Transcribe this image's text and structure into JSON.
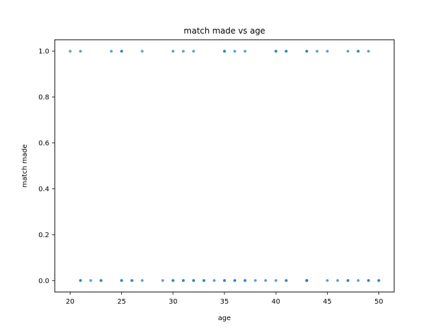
{
  "chart_data": {
    "type": "scatter",
    "title": "match made vs age",
    "xlabel": "age",
    "ylabel": "match made",
    "xlim": [
      18.5,
      51.5
    ],
    "ylim": [
      -0.05,
      1.05
    ],
    "xticks": [
      20,
      25,
      30,
      35,
      40,
      45,
      50
    ],
    "yticks": [
      0.0,
      0.2,
      0.4,
      0.6,
      0.8,
      1.0
    ],
    "xtick_labels": [
      "20",
      "25",
      "30",
      "35",
      "40",
      "45",
      "50"
    ],
    "ytick_labels": [
      "0.0",
      "0.2",
      "0.4",
      "0.6",
      "0.8",
      "1.0"
    ],
    "grid": false,
    "marker_color": "#1f77b4",
    "series": [
      {
        "points": [
          {
            "x": 20,
            "y": 1
          },
          {
            "x": 21,
            "y": 1
          },
          {
            "x": 24,
            "y": 1
          },
          {
            "x": 25,
            "y": 1
          },
          {
            "x": 25,
            "y": 1
          },
          {
            "x": 27,
            "y": 1
          },
          {
            "x": 30,
            "y": 1
          },
          {
            "x": 31,
            "y": 1
          },
          {
            "x": 32,
            "y": 1
          },
          {
            "x": 35,
            "y": 1
          },
          {
            "x": 35,
            "y": 1
          },
          {
            "x": 36,
            "y": 1
          },
          {
            "x": 37,
            "y": 1
          },
          {
            "x": 40,
            "y": 1
          },
          {
            "x": 40,
            "y": 1
          },
          {
            "x": 41,
            "y": 1
          },
          {
            "x": 41,
            "y": 1
          },
          {
            "x": 43,
            "y": 1
          },
          {
            "x": 43,
            "y": 1
          },
          {
            "x": 44,
            "y": 1
          },
          {
            "x": 45,
            "y": 1
          },
          {
            "x": 47,
            "y": 1
          },
          {
            "x": 48,
            "y": 1
          },
          {
            "x": 48,
            "y": 1
          },
          {
            "x": 49,
            "y": 1
          },
          {
            "x": 21,
            "y": 0
          },
          {
            "x": 21,
            "y": 0
          },
          {
            "x": 22,
            "y": 0
          },
          {
            "x": 23,
            "y": 0
          },
          {
            "x": 23,
            "y": 0
          },
          {
            "x": 25,
            "y": 0
          },
          {
            "x": 25,
            "y": 0
          },
          {
            "x": 26,
            "y": 0
          },
          {
            "x": 26,
            "y": 0
          },
          {
            "x": 27,
            "y": 0
          },
          {
            "x": 29,
            "y": 0
          },
          {
            "x": 30,
            "y": 0
          },
          {
            "x": 30,
            "y": 0
          },
          {
            "x": 31,
            "y": 0
          },
          {
            "x": 31,
            "y": 0
          },
          {
            "x": 32,
            "y": 0
          },
          {
            "x": 32,
            "y": 0
          },
          {
            "x": 33,
            "y": 0
          },
          {
            "x": 33,
            "y": 0
          },
          {
            "x": 34,
            "y": 0
          },
          {
            "x": 35,
            "y": 0
          },
          {
            "x": 35,
            "y": 0
          },
          {
            "x": 36,
            "y": 0
          },
          {
            "x": 36,
            "y": 0
          },
          {
            "x": 37,
            "y": 0
          },
          {
            "x": 37,
            "y": 0
          },
          {
            "x": 38,
            "y": 0
          },
          {
            "x": 39,
            "y": 0
          },
          {
            "x": 40,
            "y": 0
          },
          {
            "x": 41,
            "y": 0
          },
          {
            "x": 41,
            "y": 0
          },
          {
            "x": 43,
            "y": 0
          },
          {
            "x": 43,
            "y": 0
          },
          {
            "x": 43,
            "y": 0
          },
          {
            "x": 45,
            "y": 0
          },
          {
            "x": 46,
            "y": 0
          },
          {
            "x": 47,
            "y": 0
          },
          {
            "x": 47,
            "y": 0
          },
          {
            "x": 48,
            "y": 0
          },
          {
            "x": 49,
            "y": 0
          },
          {
            "x": 49,
            "y": 0
          },
          {
            "x": 50,
            "y": 0
          },
          {
            "x": 50,
            "y": 0
          }
        ]
      }
    ]
  }
}
